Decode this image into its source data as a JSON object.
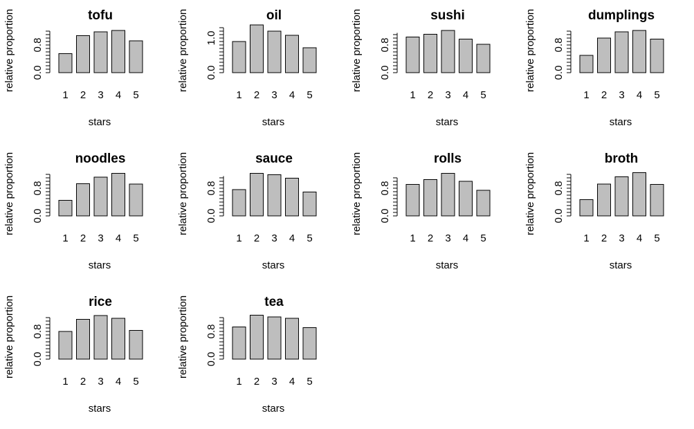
{
  "chart_data": [
    {
      "type": "bar",
      "title": "tofu",
      "xlabel": "stars",
      "ylabel": "relative proportion",
      "categories": [
        "1",
        "2",
        "3",
        "4",
        "5"
      ],
      "values": [
        0.55,
        1.07,
        1.18,
        1.22,
        0.92
      ],
      "yticks": [
        0.0,
        0.8
      ],
      "ytick_labels": [
        "0.0",
        "0.8"
      ],
      "yaxis_top": 1.2
    },
    {
      "type": "bar",
      "title": "oil",
      "xlabel": "stars",
      "ylabel": "relative proportion",
      "categories": [
        "1",
        "2",
        "3",
        "4",
        "5"
      ],
      "values": [
        0.9,
        1.38,
        1.2,
        1.08,
        0.72
      ],
      "yticks": [
        0.0,
        1.0
      ],
      "ytick_labels": [
        "0.0",
        "1.0"
      ],
      "yaxis_top": 1.3
    },
    {
      "type": "bar",
      "title": "sushi",
      "xlabel": "stars",
      "ylabel": "relative proportion",
      "categories": [
        "1",
        "2",
        "3",
        "4",
        "5"
      ],
      "values": [
        1.03,
        1.11,
        1.22,
        0.97,
        0.82
      ],
      "yticks": [
        0.0,
        0.8
      ],
      "ytick_labels": [
        "0.0",
        "0.8"
      ],
      "yaxis_top": 1.15
    },
    {
      "type": "bar",
      "title": "dumplings",
      "xlabel": "stars",
      "ylabel": "relative proportion",
      "categories": [
        "1",
        "2",
        "3",
        "4",
        "5"
      ],
      "values": [
        0.5,
        1.0,
        1.18,
        1.22,
        0.97
      ],
      "yticks": [
        0.0,
        0.8
      ],
      "ytick_labels": [
        "0.0",
        "0.8"
      ],
      "yaxis_top": 1.2
    },
    {
      "type": "bar",
      "title": "noodles",
      "xlabel": "stars",
      "ylabel": "relative proportion",
      "categories": [
        "1",
        "2",
        "3",
        "4",
        "5"
      ],
      "values": [
        0.45,
        0.93,
        1.12,
        1.23,
        0.92
      ],
      "yticks": [
        0.0,
        0.8
      ],
      "ytick_labels": [
        "0.0",
        "0.8"
      ],
      "yaxis_top": 1.2
    },
    {
      "type": "bar",
      "title": "sauce",
      "xlabel": "stars",
      "ylabel": "relative proportion",
      "categories": [
        "1",
        "2",
        "3",
        "4",
        "5"
      ],
      "values": [
        0.76,
        1.23,
        1.19,
        1.09,
        0.69
      ],
      "yticks": [
        0.0,
        0.8
      ],
      "ytick_labels": [
        "0.0",
        "0.8"
      ],
      "yaxis_top": 1.15
    },
    {
      "type": "bar",
      "title": "rolls",
      "xlabel": "stars",
      "ylabel": "relative proportion",
      "categories": [
        "1",
        "2",
        "3",
        "4",
        "5"
      ],
      "values": [
        0.91,
        1.05,
        1.23,
        1.0,
        0.74
      ],
      "yticks": [
        0.0,
        0.8
      ],
      "ytick_labels": [
        "0.0",
        "0.8"
      ],
      "yaxis_top": 1.1
    },
    {
      "type": "bar",
      "title": "broth",
      "xlabel": "stars",
      "ylabel": "relative proportion",
      "categories": [
        "1",
        "2",
        "3",
        "4",
        "5"
      ],
      "values": [
        0.47,
        0.92,
        1.13,
        1.25,
        0.91
      ],
      "yticks": [
        0.0,
        0.8
      ],
      "ytick_labels": [
        "0.0",
        "0.8"
      ],
      "yaxis_top": 1.2
    },
    {
      "type": "bar",
      "title": "rice",
      "xlabel": "stars",
      "ylabel": "relative proportion",
      "categories": [
        "1",
        "2",
        "3",
        "4",
        "5"
      ],
      "values": [
        0.8,
        1.15,
        1.26,
        1.18,
        0.83
      ],
      "yticks": [
        0.0,
        0.8
      ],
      "ytick_labels": [
        "0.0",
        "0.8"
      ],
      "yaxis_top": 1.2
    },
    {
      "type": "bar",
      "title": "tea",
      "xlabel": "stars",
      "ylabel": "relative proportion",
      "categories": [
        "1",
        "2",
        "3",
        "4",
        "5"
      ],
      "values": [
        0.93,
        1.27,
        1.22,
        1.18,
        0.91
      ],
      "yticks": [
        0.0,
        0.8
      ],
      "ytick_labels": [
        "0.0",
        "0.8"
      ],
      "yaxis_top": 1.2
    }
  ],
  "style": {
    "bar_fill": "#bebebe",
    "bar_stroke": "#000000",
    "background": "#ffffff"
  }
}
